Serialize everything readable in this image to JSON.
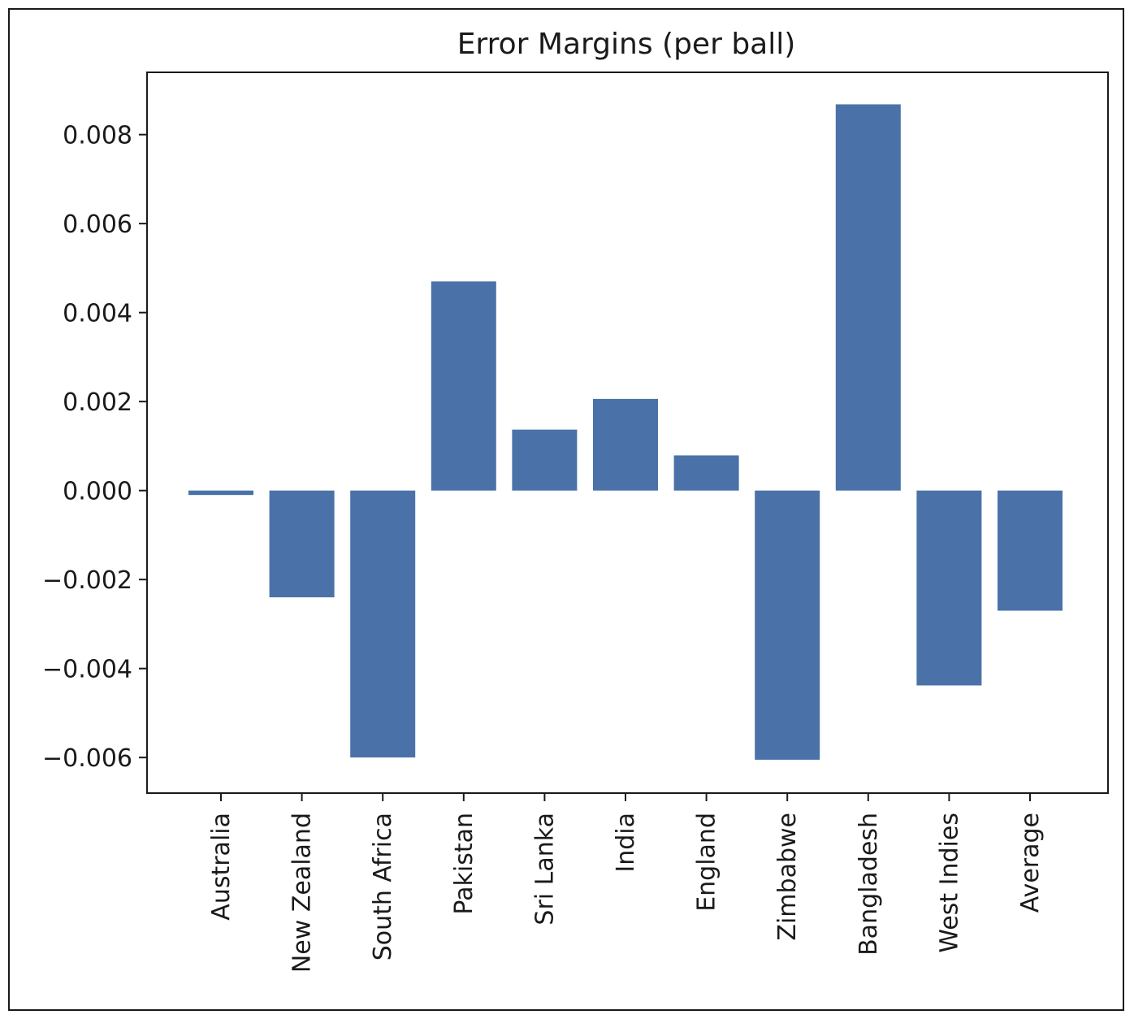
{
  "chart_data": {
    "type": "bar",
    "title": "Error Margins (per ball)",
    "xlabel": "",
    "ylabel": "",
    "categories": [
      "Australia",
      "New Zealand",
      "South Africa",
      "Pakistan",
      "Sri Lanka",
      "India",
      "England",
      "Zimbabwe",
      "Bangladesh",
      "West Indies",
      "Average"
    ],
    "values": [
      -0.0001,
      -0.0024,
      -0.006,
      0.0047,
      0.00137,
      0.00206,
      0.00079,
      -0.00605,
      0.00868,
      -0.00438,
      -0.0027
    ],
    "ylim": [
      -0.0068,
      0.0094
    ],
    "yticks": [
      -0.006,
      -0.004,
      -0.002,
      0.0,
      0.002,
      0.004,
      0.006,
      0.008
    ],
    "ytick_labels": [
      "−0.006",
      "−0.004",
      "−0.002",
      "0.000",
      "0.002",
      "0.004",
      "0.006",
      "0.008"
    ],
    "bar_color": "#4a72a8",
    "grid": false,
    "legend": "none"
  }
}
